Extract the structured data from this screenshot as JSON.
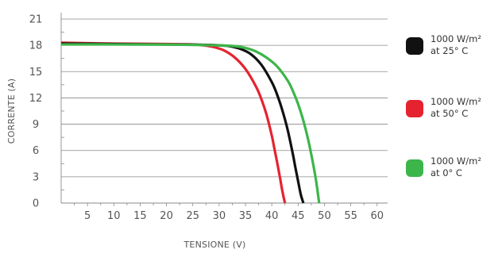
{
  "chart_data": {
    "type": "line",
    "title": "",
    "xlabel": "TENSIONE (V)",
    "ylabel": "CORRENTE (A)",
    "xlim": [
      0,
      62
    ],
    "ylim": [
      0,
      21
    ],
    "x_ticks": [
      5,
      10,
      15,
      20,
      25,
      30,
      35,
      40,
      45,
      50,
      55,
      60
    ],
    "y_ticks": [
      0,
      3,
      6,
      9,
      12,
      15,
      18,
      21
    ],
    "grid": "horizontal",
    "legend_position": "right",
    "series": [
      {
        "name": "1000 W/m² at 25° C",
        "legend_line1": "1000 W/m²",
        "legend_line2": "at 25° C",
        "color": "#111111",
        "x": [
          0,
          10,
          20,
          25,
          28,
          30,
          32,
          34,
          36,
          38,
          40,
          41,
          42,
          43,
          44,
          44.5,
          45,
          45.5,
          46
        ],
        "y": [
          18.2,
          18.15,
          18.1,
          18.08,
          18.05,
          18.0,
          17.9,
          17.6,
          17.0,
          15.8,
          13.8,
          12.4,
          10.6,
          8.4,
          5.6,
          4.0,
          2.5,
          1.0,
          0
        ]
      },
      {
        "name": "1000 W/m² at 50° C",
        "legend_line1": "1000 W/m²",
        "legend_line2": "at 50° C",
        "color": "#e52330",
        "x": [
          0,
          10,
          20,
          25,
          27,
          29,
          31,
          33,
          35,
          37,
          38,
          39,
          40,
          40.5,
          41,
          41.5,
          42,
          42.5
        ],
        "y": [
          18.3,
          18.2,
          18.15,
          18.1,
          18.0,
          17.8,
          17.4,
          16.6,
          15.3,
          13.3,
          11.9,
          10.1,
          7.7,
          6.2,
          4.7,
          3.1,
          1.4,
          0
        ]
      },
      {
        "name": "1000 W/m² at 0° C",
        "legend_line1": "1000 W/m²",
        "legend_line2": "at 0° C",
        "color": "#3cb54a",
        "x": [
          0,
          10,
          20,
          25,
          30,
          33,
          35,
          37,
          39,
          41,
          43,
          44,
          45,
          46,
          47,
          48,
          48.5,
          49
        ],
        "y": [
          18.1,
          18.1,
          18.08,
          18.05,
          18.0,
          17.9,
          17.7,
          17.3,
          16.6,
          15.6,
          14.0,
          12.8,
          11.3,
          9.4,
          7.0,
          4.0,
          2.2,
          0
        ]
      }
    ]
  }
}
